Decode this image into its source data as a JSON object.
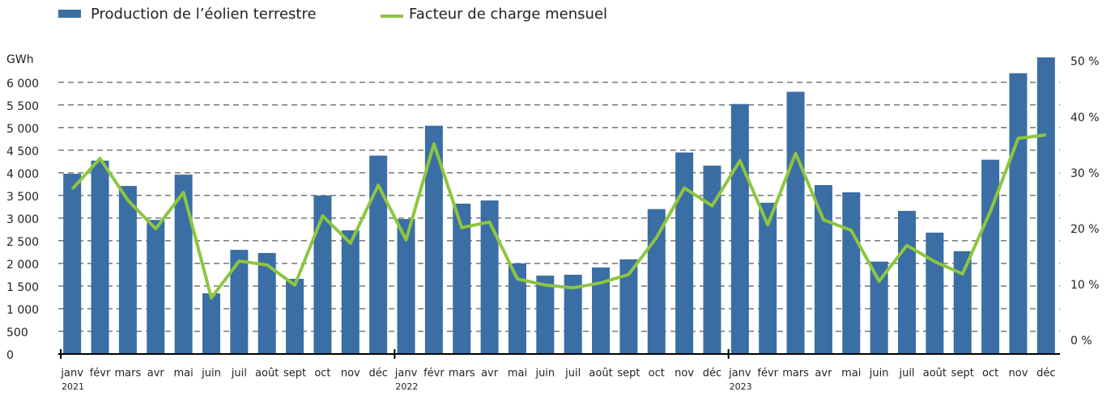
{
  "chart_data": {
    "type": "bar",
    "y_label": "GWh",
    "categories": [
      "janv",
      "févr",
      "mars",
      "avr",
      "mai",
      "juin",
      "juil",
      "août",
      "sept",
      "oct",
      "nov",
      "déc",
      "janv",
      "févr",
      "mars",
      "avr",
      "mai",
      "juin",
      "juil",
      "août",
      "sept",
      "oct",
      "nov",
      "déc",
      "janv",
      "févr",
      "mars",
      "avr",
      "mai",
      "juin",
      "juil",
      "août",
      "sept",
      "oct",
      "nov",
      "déc"
    ],
    "years": [
      "2021",
      "2022",
      "2023"
    ],
    "series": [
      {
        "name": "Production de l’éolien terrestre",
        "type": "bar",
        "color": "#3a6ea5",
        "values": [
          3980,
          4270,
          3710,
          2960,
          3960,
          1340,
          2300,
          2230,
          1660,
          3500,
          2730,
          4380,
          2980,
          5040,
          3320,
          3390,
          2000,
          1730,
          1750,
          1910,
          2090,
          3200,
          4450,
          4160,
          5520,
          3340,
          5790,
          3730,
          3570,
          2040,
          3160,
          2680,
          2270,
          4290,
          6200,
          6550
        ]
      },
      {
        "name": "Facteur de charge mensuel",
        "type": "line",
        "axis": "y2",
        "color": "#8dc63f",
        "values": [
          28.1,
          33.6,
          26.1,
          21.0,
          27.5,
          8.6,
          15.2,
          14.5,
          10.9,
          23.3,
          18.4,
          28.8,
          19.0,
          36.2,
          21.2,
          22.2,
          12.0,
          10.9,
          10.4,
          11.3,
          12.8,
          19.4,
          28.3,
          25.1,
          33.2,
          21.7,
          34.5,
          22.6,
          20.7,
          11.6,
          18.0,
          15.1,
          12.9,
          24.1,
          37.2,
          37.8
        ]
      }
    ],
    "ylim": [
      0,
      6550
    ],
    "yticks": [
      0,
      500,
      {
        "value": 1000,
        "label": "1 000"
      },
      {
        "value": 1500,
        "label": "1 500"
      },
      {
        "value": 2000,
        "label": "2 000"
      },
      {
        "value": 2500,
        "label": "2 500"
      },
      {
        "value": 3000,
        "label": "3 000"
      },
      {
        "value": 3500,
        "label": "3 500"
      },
      {
        "value": 4000,
        "label": "4 000"
      },
      {
        "value": 4500,
        "label": "4 500"
      },
      {
        "value": 5000,
        "label": "5 000"
      },
      {
        "value": 5500,
        "label": "5 500"
      },
      {
        "value": 6000,
        "label": "6 000"
      }
    ],
    "y2lim": [
      -1.45,
      51.7
    ],
    "y2ticks": [
      {
        "value": 0,
        "label": "0 %"
      },
      {
        "value": 10,
        "label": "10 %"
      },
      {
        "value": 20,
        "label": "20 %"
      },
      {
        "value": 30,
        "label": "30 %"
      },
      {
        "value": 40,
        "label": "40 %"
      },
      {
        "value": 50,
        "label": "50 %"
      }
    ],
    "grid": true
  }
}
